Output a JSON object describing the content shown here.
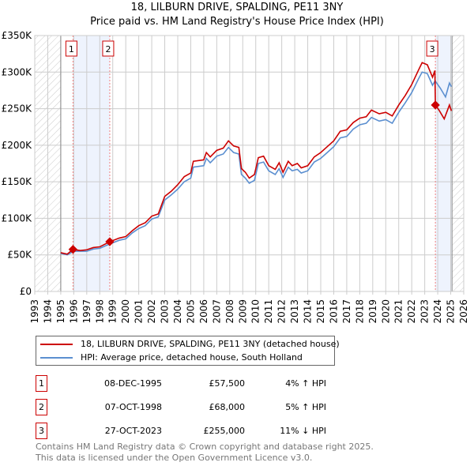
{
  "chart_data": {
    "type": "line",
    "title": "18, LILBURN DRIVE, SPALDING, PE11 3NY",
    "subtitle": "Price paid vs. HM Land Registry's House Price Index (HPI)",
    "xlim": [
      1993,
      2026
    ],
    "ylim": [
      0,
      350000
    ],
    "x_ticks": [
      "1993",
      "1994",
      "1995",
      "1996",
      "1997",
      "1998",
      "1999",
      "2000",
      "2001",
      "2002",
      "2003",
      "2004",
      "2005",
      "2006",
      "2007",
      "2008",
      "2009",
      "2010",
      "2011",
      "2012",
      "2013",
      "2014",
      "2015",
      "2016",
      "2017",
      "2018",
      "2019",
      "2020",
      "2021",
      "2022",
      "2023",
      "2024",
      "2025",
      "2026"
    ],
    "y_ticks": [
      {
        "v": 0,
        "label": "£0"
      },
      {
        "v": 50000,
        "label": "£50K"
      },
      {
        "v": 100000,
        "label": "£100K"
      },
      {
        "v": 150000,
        "label": "£150K"
      },
      {
        "v": 200000,
        "label": "£200K"
      },
      {
        "v": 250000,
        "label": "£250K"
      },
      {
        "v": 300000,
        "label": "£300K"
      },
      {
        "v": 350000,
        "label": "£350K"
      }
    ],
    "grid": true,
    "hatched_ranges": [
      [
        1993,
        1995
      ],
      [
        2025.1,
        2026
      ]
    ],
    "shaded_ranges": [
      [
        1995.94,
        1998.77
      ],
      [
        2023.82,
        2025.1
      ]
    ],
    "series": [
      {
        "name": "18, LILBURN DRIVE, SPALDING, PE11 3NY (detached house)",
        "color": "#cc0000",
        "points": [
          [
            1995,
            53
          ],
          [
            1995.5,
            51
          ],
          [
            1995.94,
            57.5
          ],
          [
            1996.5,
            56
          ],
          [
            1997,
            57
          ],
          [
            1997.5,
            60
          ],
          [
            1998,
            61
          ],
          [
            1998.77,
            68
          ],
          [
            1999.5,
            73
          ],
          [
            2000,
            75
          ],
          [
            2000.5,
            83
          ],
          [
            2001,
            90
          ],
          [
            2001.5,
            94
          ],
          [
            2002,
            103
          ],
          [
            2002.5,
            106
          ],
          [
            2003,
            130
          ],
          [
            2003.5,
            137
          ],
          [
            2004,
            146
          ],
          [
            2004.5,
            157
          ],
          [
            2005,
            162
          ],
          [
            2005.2,
            178
          ],
          [
            2006,
            180
          ],
          [
            2006.2,
            190
          ],
          [
            2006.5,
            184
          ],
          [
            2007,
            193
          ],
          [
            2007.5,
            196
          ],
          [
            2007.9,
            206
          ],
          [
            2008.3,
            199
          ],
          [
            2008.7,
            197
          ],
          [
            2008.9,
            168
          ],
          [
            2009.2,
            163
          ],
          [
            2009.5,
            155
          ],
          [
            2009.9,
            160
          ],
          [
            2010.2,
            183
          ],
          [
            2010.6,
            185
          ],
          [
            2011,
            172
          ],
          [
            2011.5,
            167
          ],
          [
            2011.8,
            176
          ],
          [
            2012.1,
            163
          ],
          [
            2012.5,
            178
          ],
          [
            2012.8,
            172
          ],
          [
            2013.2,
            175
          ],
          [
            2013.5,
            169
          ],
          [
            2014,
            172
          ],
          [
            2014.5,
            184
          ],
          [
            2015,
            190
          ],
          [
            2015.5,
            198
          ],
          [
            2016,
            206
          ],
          [
            2016.5,
            219
          ],
          [
            2017,
            221
          ],
          [
            2017.5,
            231
          ],
          [
            2018,
            237
          ],
          [
            2018.5,
            239
          ],
          [
            2018.9,
            248
          ],
          [
            2019.5,
            243
          ],
          [
            2020,
            245
          ],
          [
            2020.5,
            240
          ],
          [
            2021,
            255
          ],
          [
            2021.5,
            268
          ],
          [
            2022,
            283
          ],
          [
            2022.5,
            302
          ],
          [
            2022.8,
            313
          ],
          [
            2023.2,
            310
          ],
          [
            2023.6,
            293
          ],
          [
            2023.78,
            302
          ],
          [
            2023.82,
            255
          ],
          [
            2024.1,
            248
          ],
          [
            2024.5,
            236
          ],
          [
            2024.9,
            255
          ],
          [
            2025.05,
            247
          ]
        ]
      },
      {
        "name": "HPI: Average price, detached house, South Holland",
        "color": "#5b8fd0",
        "points": [
          [
            1995,
            52
          ],
          [
            1995.5,
            50
          ],
          [
            1996,
            55
          ],
          [
            1997,
            55
          ],
          [
            1997.5,
            58
          ],
          [
            1998,
            59
          ],
          [
            1998.77,
            65
          ],
          [
            1999.5,
            70
          ],
          [
            2000,
            72
          ],
          [
            2000.5,
            80
          ],
          [
            2001,
            86
          ],
          [
            2001.5,
            90
          ],
          [
            2002,
            99
          ],
          [
            2002.5,
            102
          ],
          [
            2003,
            125
          ],
          [
            2003.5,
            132
          ],
          [
            2004,
            140
          ],
          [
            2004.5,
            150
          ],
          [
            2005,
            155
          ],
          [
            2005.2,
            170
          ],
          [
            2006,
            172
          ],
          [
            2006.2,
            182
          ],
          [
            2006.5,
            176
          ],
          [
            2007,
            185
          ],
          [
            2007.5,
            188
          ],
          [
            2007.9,
            197
          ],
          [
            2008.3,
            190
          ],
          [
            2008.7,
            188
          ],
          [
            2008.9,
            160
          ],
          [
            2009.2,
            155
          ],
          [
            2009.5,
            148
          ],
          [
            2009.9,
            152
          ],
          [
            2010.2,
            175
          ],
          [
            2010.6,
            177
          ],
          [
            2011,
            165
          ],
          [
            2011.5,
            160
          ],
          [
            2011.8,
            168
          ],
          [
            2012.1,
            156
          ],
          [
            2012.5,
            170
          ],
          [
            2012.8,
            165
          ],
          [
            2013.2,
            167
          ],
          [
            2013.5,
            162
          ],
          [
            2014,
            165
          ],
          [
            2014.5,
            177
          ],
          [
            2015,
            182
          ],
          [
            2015.5,
            190
          ],
          [
            2016,
            198
          ],
          [
            2016.5,
            210
          ],
          [
            2017,
            212
          ],
          [
            2017.5,
            222
          ],
          [
            2018,
            228
          ],
          [
            2018.5,
            230
          ],
          [
            2018.9,
            238
          ],
          [
            2019.5,
            233
          ],
          [
            2020,
            235
          ],
          [
            2020.5,
            230
          ],
          [
            2021,
            245
          ],
          [
            2021.5,
            258
          ],
          [
            2022,
            272
          ],
          [
            2022.5,
            290
          ],
          [
            2022.8,
            300
          ],
          [
            2023.2,
            298
          ],
          [
            2023.6,
            282
          ],
          [
            2023.8,
            288
          ],
          [
            2024.2,
            278
          ],
          [
            2024.6,
            266
          ],
          [
            2024.9,
            285
          ],
          [
            2025.05,
            280
          ]
        ]
      }
    ],
    "y_units": "thousands GBP",
    "sales": [
      {
        "label": "1",
        "x": 1995.94,
        "y": 57.5
      },
      {
        "label": "2",
        "x": 1998.77,
        "y": 68
      },
      {
        "label": "3",
        "x": 2023.82,
        "y": 255
      }
    ]
  },
  "legend": {
    "property": "18, LILBURN DRIVE, SPALDING, PE11 3NY (detached house)",
    "hpi": "HPI: Average price, detached house, South Holland"
  },
  "transactions": [
    {
      "num": "1",
      "date": "08-DEC-1995",
      "price": "£57,500",
      "hpi": "4% ↑ HPI"
    },
    {
      "num": "2",
      "date": "07-OCT-1998",
      "price": "£68,000",
      "hpi": "5% ↑ HPI"
    },
    {
      "num": "3",
      "date": "27-OCT-2023",
      "price": "£255,000",
      "hpi": "11% ↓ HPI"
    }
  ],
  "footer": {
    "line1": "Contains HM Land Registry data © Crown copyright and database right 2025.",
    "line2": "This data is licensed under the Open Government Licence v3.0."
  }
}
